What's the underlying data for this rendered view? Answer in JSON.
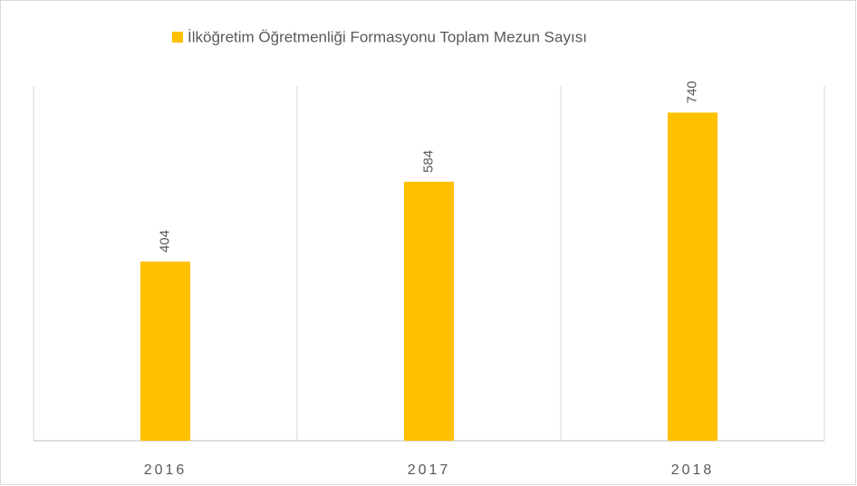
{
  "chart_data": {
    "type": "bar",
    "categories": [
      "2016",
      "2017",
      "2018"
    ],
    "series": [
      {
        "name": "İlköğretim Öğretmenliği Formasyonu Toplam Mezun Sayısı",
        "color": "#ffc000",
        "values": [
          404,
          584,
          740
        ]
      }
    ],
    "ylim": [
      0,
      800
    ],
    "legend": "top",
    "data_labels": true
  }
}
